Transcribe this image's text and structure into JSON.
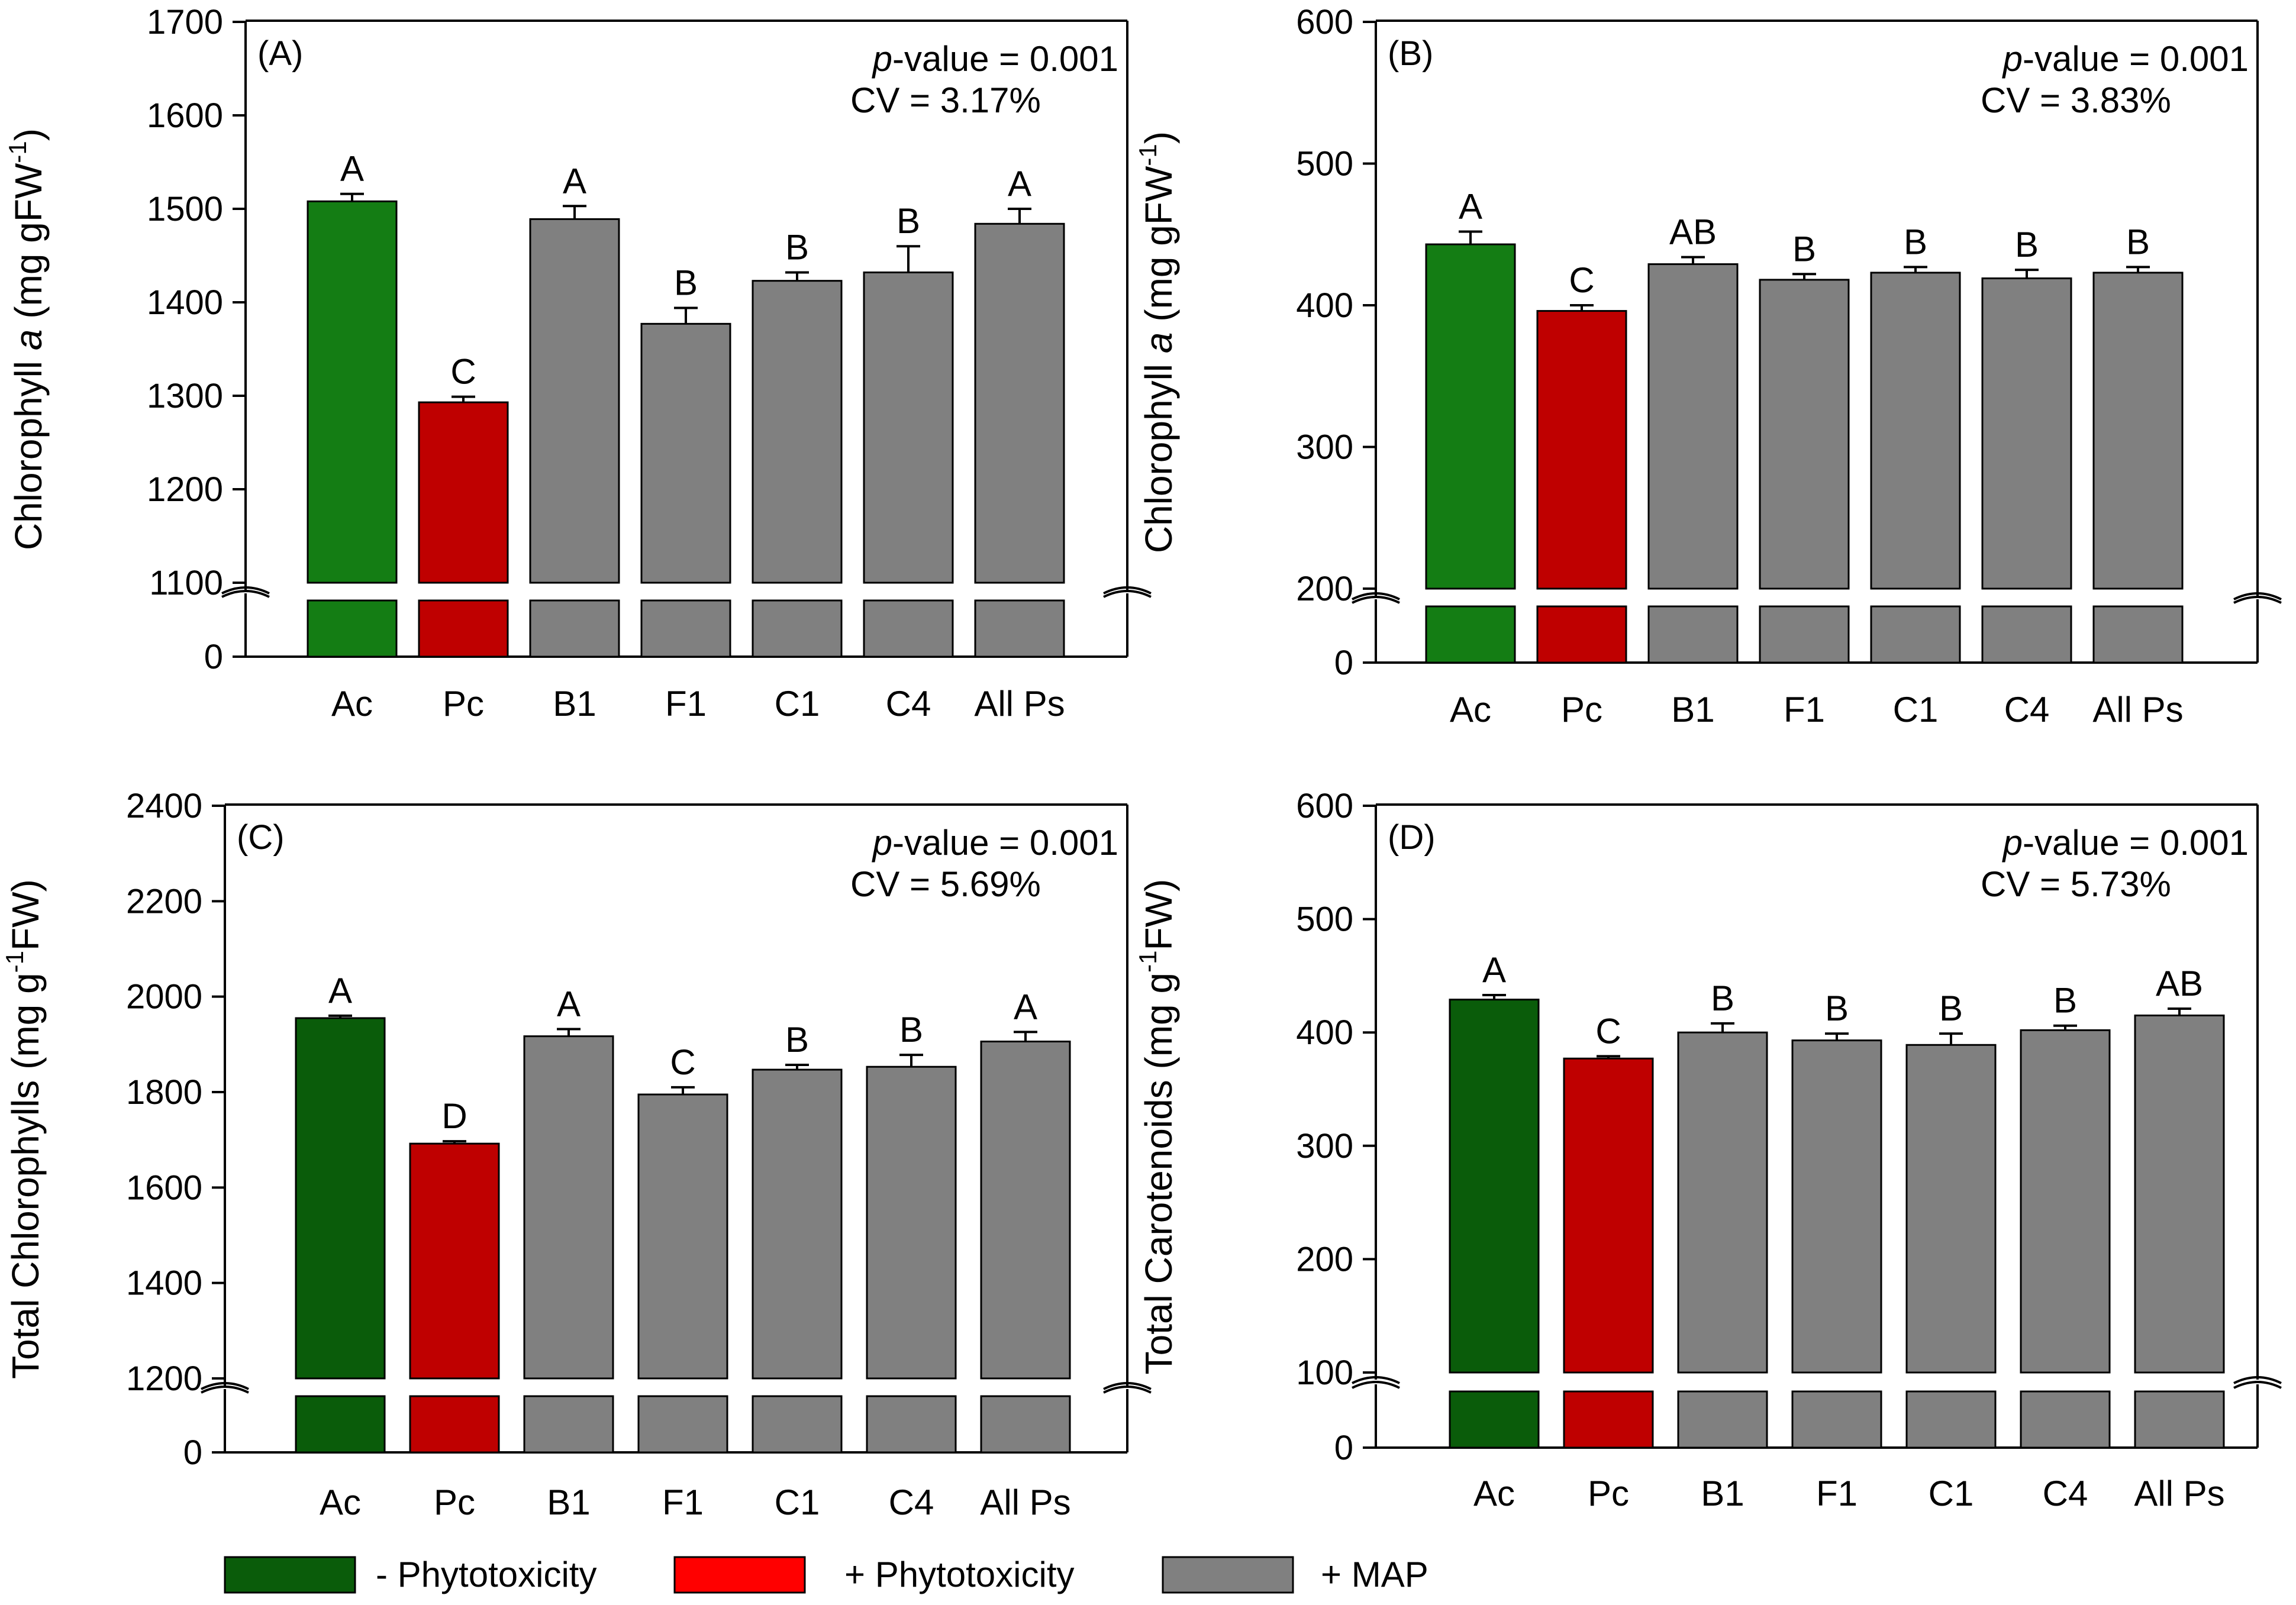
{
  "chart_data": [
    {
      "type": "bar",
      "panel_label": "(A)",
      "ylabel_pre": "Chlorophyll ",
      "ylabel_ital": "a",
      "ylabel_post": " (mg gFW",
      "ylabel_sup": "-1",
      "ylabel_close": ")",
      "ylim": [
        1100,
        1700
      ],
      "yticks": [
        1100,
        1200,
        1300,
        1400,
        1500,
        1600,
        1700
      ],
      "pvalue_italic": "p",
      "pvalue_text": "-value = 0.001",
      "cv_text": "CV = 3.17%",
      "categories": [
        "Ac",
        "Pc",
        "B1",
        "F1",
        "C1",
        "C4",
        "All Ps"
      ],
      "values": [
        1508,
        1293,
        1489,
        1377,
        1423,
        1432,
        1484
      ],
      "errors": [
        8,
        6,
        14,
        17,
        9,
        28,
        16
      ],
      "letters": [
        "A",
        "C",
        "A",
        "B",
        "B",
        "B",
        "A"
      ],
      "colors": [
        "#147d14",
        "#bf0000",
        "#808080",
        "#808080",
        "#808080",
        "#808080",
        "#808080"
      ]
    },
    {
      "type": "bar",
      "panel_label": "(B)",
      "ylabel_pre": "Chlorophyll ",
      "ylabel_ital": "a",
      "ylabel_post": " (mg gFW",
      "ylabel_sup": "-1",
      "ylabel_close": ")",
      "ylim": [
        200,
        600
      ],
      "yticks": [
        200,
        300,
        400,
        500,
        600
      ],
      "pvalue_italic": "p",
      "pvalue_text": "-value = 0.001",
      "cv_text": "CV = 3.83%",
      "categories": [
        "Ac",
        "Pc",
        "B1",
        "F1",
        "C1",
        "C4",
        "All Ps"
      ],
      "values": [
        443,
        396,
        429,
        418,
        423,
        419,
        423
      ],
      "errors": [
        9,
        4,
        5,
        4,
        4,
        6,
        4
      ],
      "letters": [
        "A",
        "C",
        "AB",
        "B",
        "B",
        "B",
        "B"
      ],
      "colors": [
        "#147d14",
        "#bf0000",
        "#808080",
        "#808080",
        "#808080",
        "#808080",
        "#808080"
      ]
    },
    {
      "type": "bar",
      "panel_label": "(C)",
      "ylabel_pre": "Total Chlorophylls (mg g",
      "ylabel_ital": "",
      "ylabel_post": "",
      "ylabel_sup": "-1",
      "ylabel_close": "FW)",
      "ylim": [
        1200,
        2400
      ],
      "yticks": [
        1200,
        1400,
        1600,
        1800,
        2000,
        2200,
        2400
      ],
      "pvalue_italic": "p",
      "pvalue_text": "-value = 0.001",
      "cv_text": "CV = 5.69%",
      "categories": [
        "Ac",
        "Pc",
        "B1",
        "F1",
        "C1",
        "C4",
        "All Ps"
      ],
      "values": [
        1955,
        1692,
        1917,
        1795,
        1847,
        1853,
        1906
      ],
      "errors": [
        5,
        5,
        15,
        15,
        10,
        25,
        20
      ],
      "letters": [
        "A",
        "D",
        "A",
        "C",
        "B",
        "B",
        "A"
      ],
      "colors": [
        "#0a5c0a",
        "#bf0000",
        "#808080",
        "#808080",
        "#808080",
        "#808080",
        "#808080"
      ]
    },
    {
      "type": "bar",
      "panel_label": "(D)",
      "ylabel_pre": "Total Carotenoids (mg g",
      "ylabel_ital": "",
      "ylabel_post": "",
      "ylabel_sup": "-1",
      "ylabel_close": "FW)",
      "ylim": [
        100,
        600
      ],
      "yticks": [
        100,
        200,
        300,
        400,
        500,
        600
      ],
      "pvalue_italic": "p",
      "pvalue_text": "-value = 0.001",
      "cv_text": "CV = 5.73%",
      "categories": [
        "Ac",
        "Pc",
        "B1",
        "F1",
        "C1",
        "C4",
        "All Ps"
      ],
      "values": [
        429,
        377,
        400,
        393,
        389,
        402,
        415
      ],
      "errors": [
        4,
        2,
        8,
        6,
        10,
        4,
        6
      ],
      "letters": [
        "A",
        "C",
        "B",
        "B",
        "B",
        "B",
        "AB"
      ],
      "colors": [
        "#0a5c0a",
        "#bf0000",
        "#808080",
        "#808080",
        "#808080",
        "#808080",
        "#808080"
      ]
    }
  ],
  "legend": [
    {
      "label": "- Phytotoxicity",
      "color": "#0a5c0a"
    },
    {
      "label": "+ Phytotoxicity",
      "color": "#ff0000"
    },
    {
      "label": "+ MAP",
      "color": "#808080"
    }
  ]
}
